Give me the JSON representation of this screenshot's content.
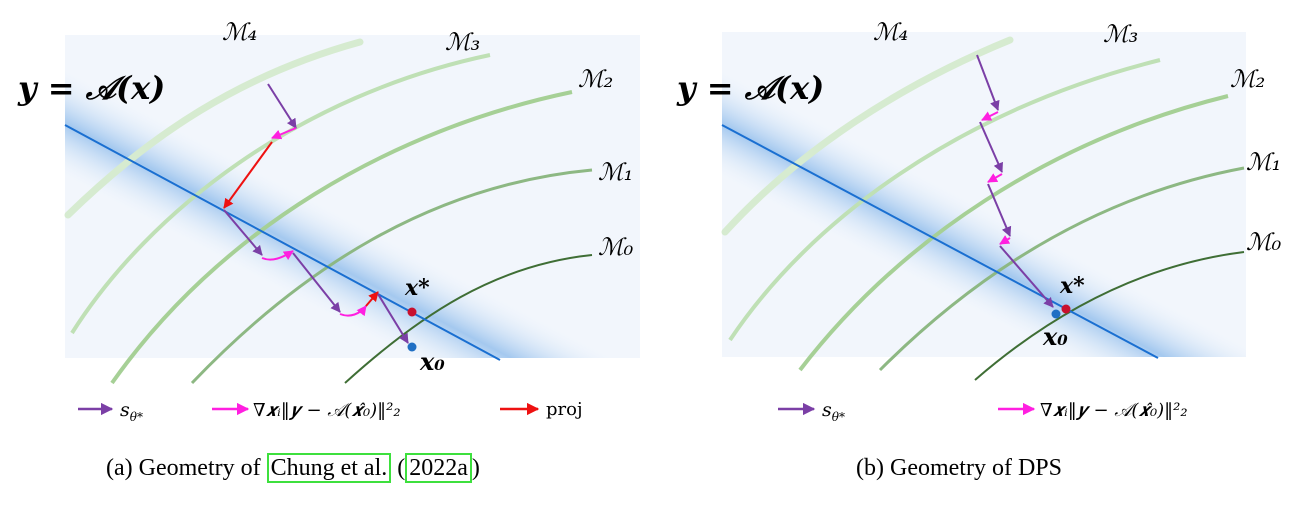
{
  "panels": [
    {
      "id": "a",
      "equation": "𝒚 = 𝒜(𝒙)",
      "manifolds": [
        "ℳ₄",
        "ℳ₃",
        "ℳ₂",
        "ℳ₁",
        "ℳ₀"
      ],
      "x_star": "𝒙*",
      "x_zero": "𝒙₀",
      "legend": {
        "score": "s",
        "score_sub": "θ*",
        "grad": "∇𝒙ᵢ‖𝒚 − 𝒜(𝒙̂₀)‖²₂",
        "proj": "proj"
      },
      "caption_prefix": "(a) Geometry of ",
      "cite_author": "Chung et al.",
      "cite_open": " (",
      "cite_year": "2022a",
      "cite_close": ")"
    },
    {
      "id": "b",
      "equation": "𝒚 = 𝒜(𝒙)",
      "manifolds": [
        "ℳ₄",
        "ℳ₃",
        "ℳ₂",
        "ℳ₁",
        "ℳ₀"
      ],
      "x_star": "𝒙*",
      "x_zero": "𝒙₀",
      "legend": {
        "score": "s",
        "score_sub": "θ*",
        "grad": "∇𝒙ᵢ‖𝒚 − 𝒜(𝒙̂₀)‖²₂"
      },
      "caption": "(b) Geometry of DPS"
    }
  ],
  "colors": {
    "score_arrow": "#7b3fa6",
    "grad_arrow": "#ff1fe0",
    "proj_arrow": "#ee1111",
    "measurement_line": "#1a6fd1",
    "point_star": "#c8102e",
    "point_zero": "#1f6fc4",
    "citation_box": "#3de03d"
  }
}
